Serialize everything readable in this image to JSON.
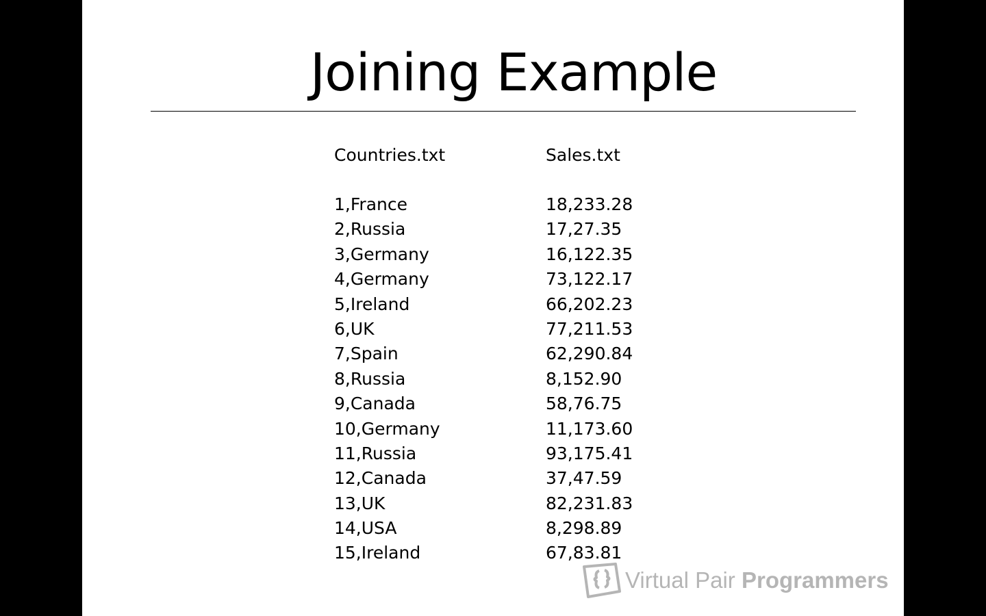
{
  "slide": {
    "title": "Joining Example",
    "columns": {
      "countries": {
        "header": "Countries.txt",
        "rows": [
          "1,France",
          "2,Russia",
          "3,Germany",
          "4,Germany",
          "5,Ireland",
          "6,UK",
          "7,Spain",
          "8,Russia",
          "9,Canada",
          "10,Germany",
          "11,Russia",
          "12,Canada",
          "13,UK",
          "14,USA",
          "15,Ireland"
        ]
      },
      "sales": {
        "header": "Sales.txt",
        "rows": [
          "18,233.28",
          "17,27.35",
          "16,122.35",
          "73,122.17",
          "66,202.23",
          "77,211.53",
          "62,290.84",
          "8,152.90",
          "58,76.75",
          "11,173.60",
          "93,175.41",
          "37,47.59",
          "82,231.83",
          "8,298.89",
          "67,83.81"
        ]
      }
    }
  },
  "watermark": {
    "logo_icon": "brackets-logo-icon",
    "text_light": "Virtual Pair ",
    "text_bold": "Programmers",
    "color": "#7a7a7a"
  }
}
